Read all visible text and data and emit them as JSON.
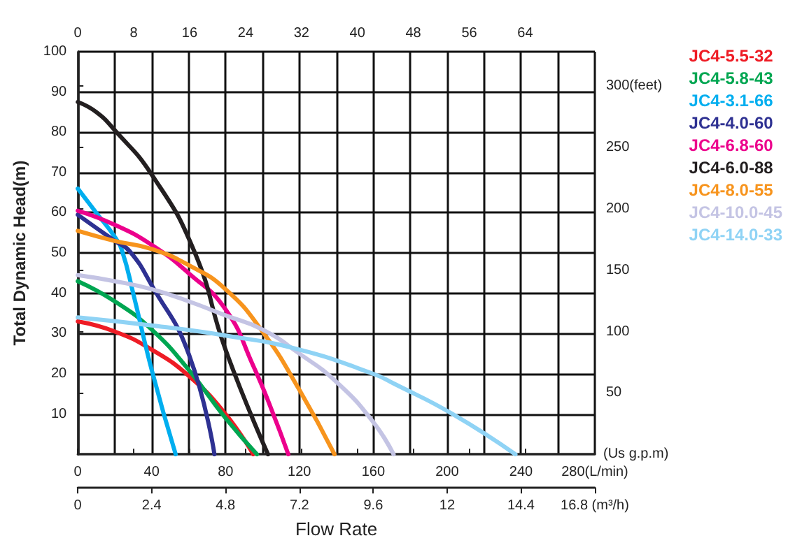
{
  "chart_data": {
    "type": "line",
    "xlabel": "Flow Rate",
    "ylabel": "Total Dynamic Head(m)",
    "x2label": "(Us g.p.m)",
    "xlim": [
      0,
      280
    ],
    "xticks": [
      0,
      {
        "value": 20,
        "label": null
      },
      40,
      {
        "value": 60,
        "label": null
      },
      80,
      {
        "value": 100,
        "label": null
      },
      120,
      {
        "value": 140,
        "label": null
      },
      160,
      {
        "value": 180,
        "label": null
      },
      200,
      {
        "value": 220,
        "label": null
      },
      240,
      {
        "value": 260,
        "label": null
      },
      {
        "value": 280,
        "label": "280(L/min)"
      }
    ],
    "x2lim": [
      0,
      73.97
    ],
    "x2ticks": [
      0,
      8,
      16,
      24,
      32,
      40,
      48,
      56,
      64
    ],
    "annotations": [
      "0",
      "2.4",
      "4.8",
      "7.2",
      "9.6",
      "12",
      "14.4",
      "16.8 (m³/h)"
    ],
    "ylim": [
      0,
      100
    ],
    "yticks": [
      10,
      20,
      30,
      40,
      50,
      60,
      70,
      80,
      90,
      100
    ],
    "y2lim": [
      0,
      328.1
    ],
    "y2ticks": [
      50,
      100,
      150,
      200,
      250,
      {
        "value": 300,
        "label": "300(feet)"
      }
    ],
    "grid": true,
    "legend": "right",
    "marker": "none",
    "line_style": "solid",
    "series": [
      {
        "name": "JC4-5.5-32",
        "color": "#ee1c25",
        "x": [
          0,
          20,
          40,
          60,
          80,
          95
        ],
        "values": [
          33,
          30.5,
          26,
          19.5,
          10,
          0
        ]
      },
      {
        "name": "JC4-5.8-43",
        "color": "#00a651",
        "x": [
          0,
          20,
          40,
          60,
          80,
          97
        ],
        "values": [
          43,
          38,
          31,
          21,
          9,
          0
        ]
      },
      {
        "name": "JC4-3.1-66",
        "color": "#00aeef",
        "x": [
          0,
          10,
          20,
          24,
          30,
          40,
          53
        ],
        "values": [
          66,
          60,
          54,
          50.5,
          40,
          21,
          0
        ]
      },
      {
        "name": "JC4-4.0-60",
        "color": "#2e3192",
        "x": [
          0,
          20,
          28,
          40,
          60,
          74
        ],
        "values": [
          59.5,
          53,
          50.5,
          42,
          25,
          0
        ]
      },
      {
        "name": "JC4-6.8-60",
        "color": "#ec008c",
        "x": [
          0,
          20,
          40,
          60,
          80,
          95,
          105,
          114
        ],
        "values": [
          60.5,
          57,
          52,
          45,
          36,
          22,
          11,
          0
        ]
      },
      {
        "name": "JC4-6.0-88",
        "color": "#231f20",
        "x": [
          0,
          10,
          20,
          40,
          63,
          80,
          103
        ],
        "values": [
          87.5,
          85,
          80.5,
          69.5,
          50.5,
          26,
          0
        ]
      },
      {
        "name": "JC4-8.0-55",
        "color": "#f7941d",
        "x": [
          0,
          20,
          40,
          60,
          80,
          100,
          120,
          139
        ],
        "values": [
          55.5,
          53,
          51,
          47,
          41,
          30.5,
          16,
          0
        ]
      },
      {
        "name": "JC4-10.0-45",
        "color": "#c4c4e4",
        "x": [
          0,
          20,
          40,
          60,
          80,
          100,
          120,
          140,
          160,
          171
        ],
        "values": [
          44.5,
          43,
          41,
          38,
          34.5,
          31,
          25,
          18,
          8,
          0
        ]
      },
      {
        "name": "JC4-14.0-33",
        "color": "#8fd3f5",
        "x": [
          0,
          40,
          80,
          120,
          160,
          171,
          203,
          237
        ],
        "values": [
          34,
          32,
          29.5,
          26,
          20,
          17.6,
          10,
          0
        ]
      }
    ]
  }
}
